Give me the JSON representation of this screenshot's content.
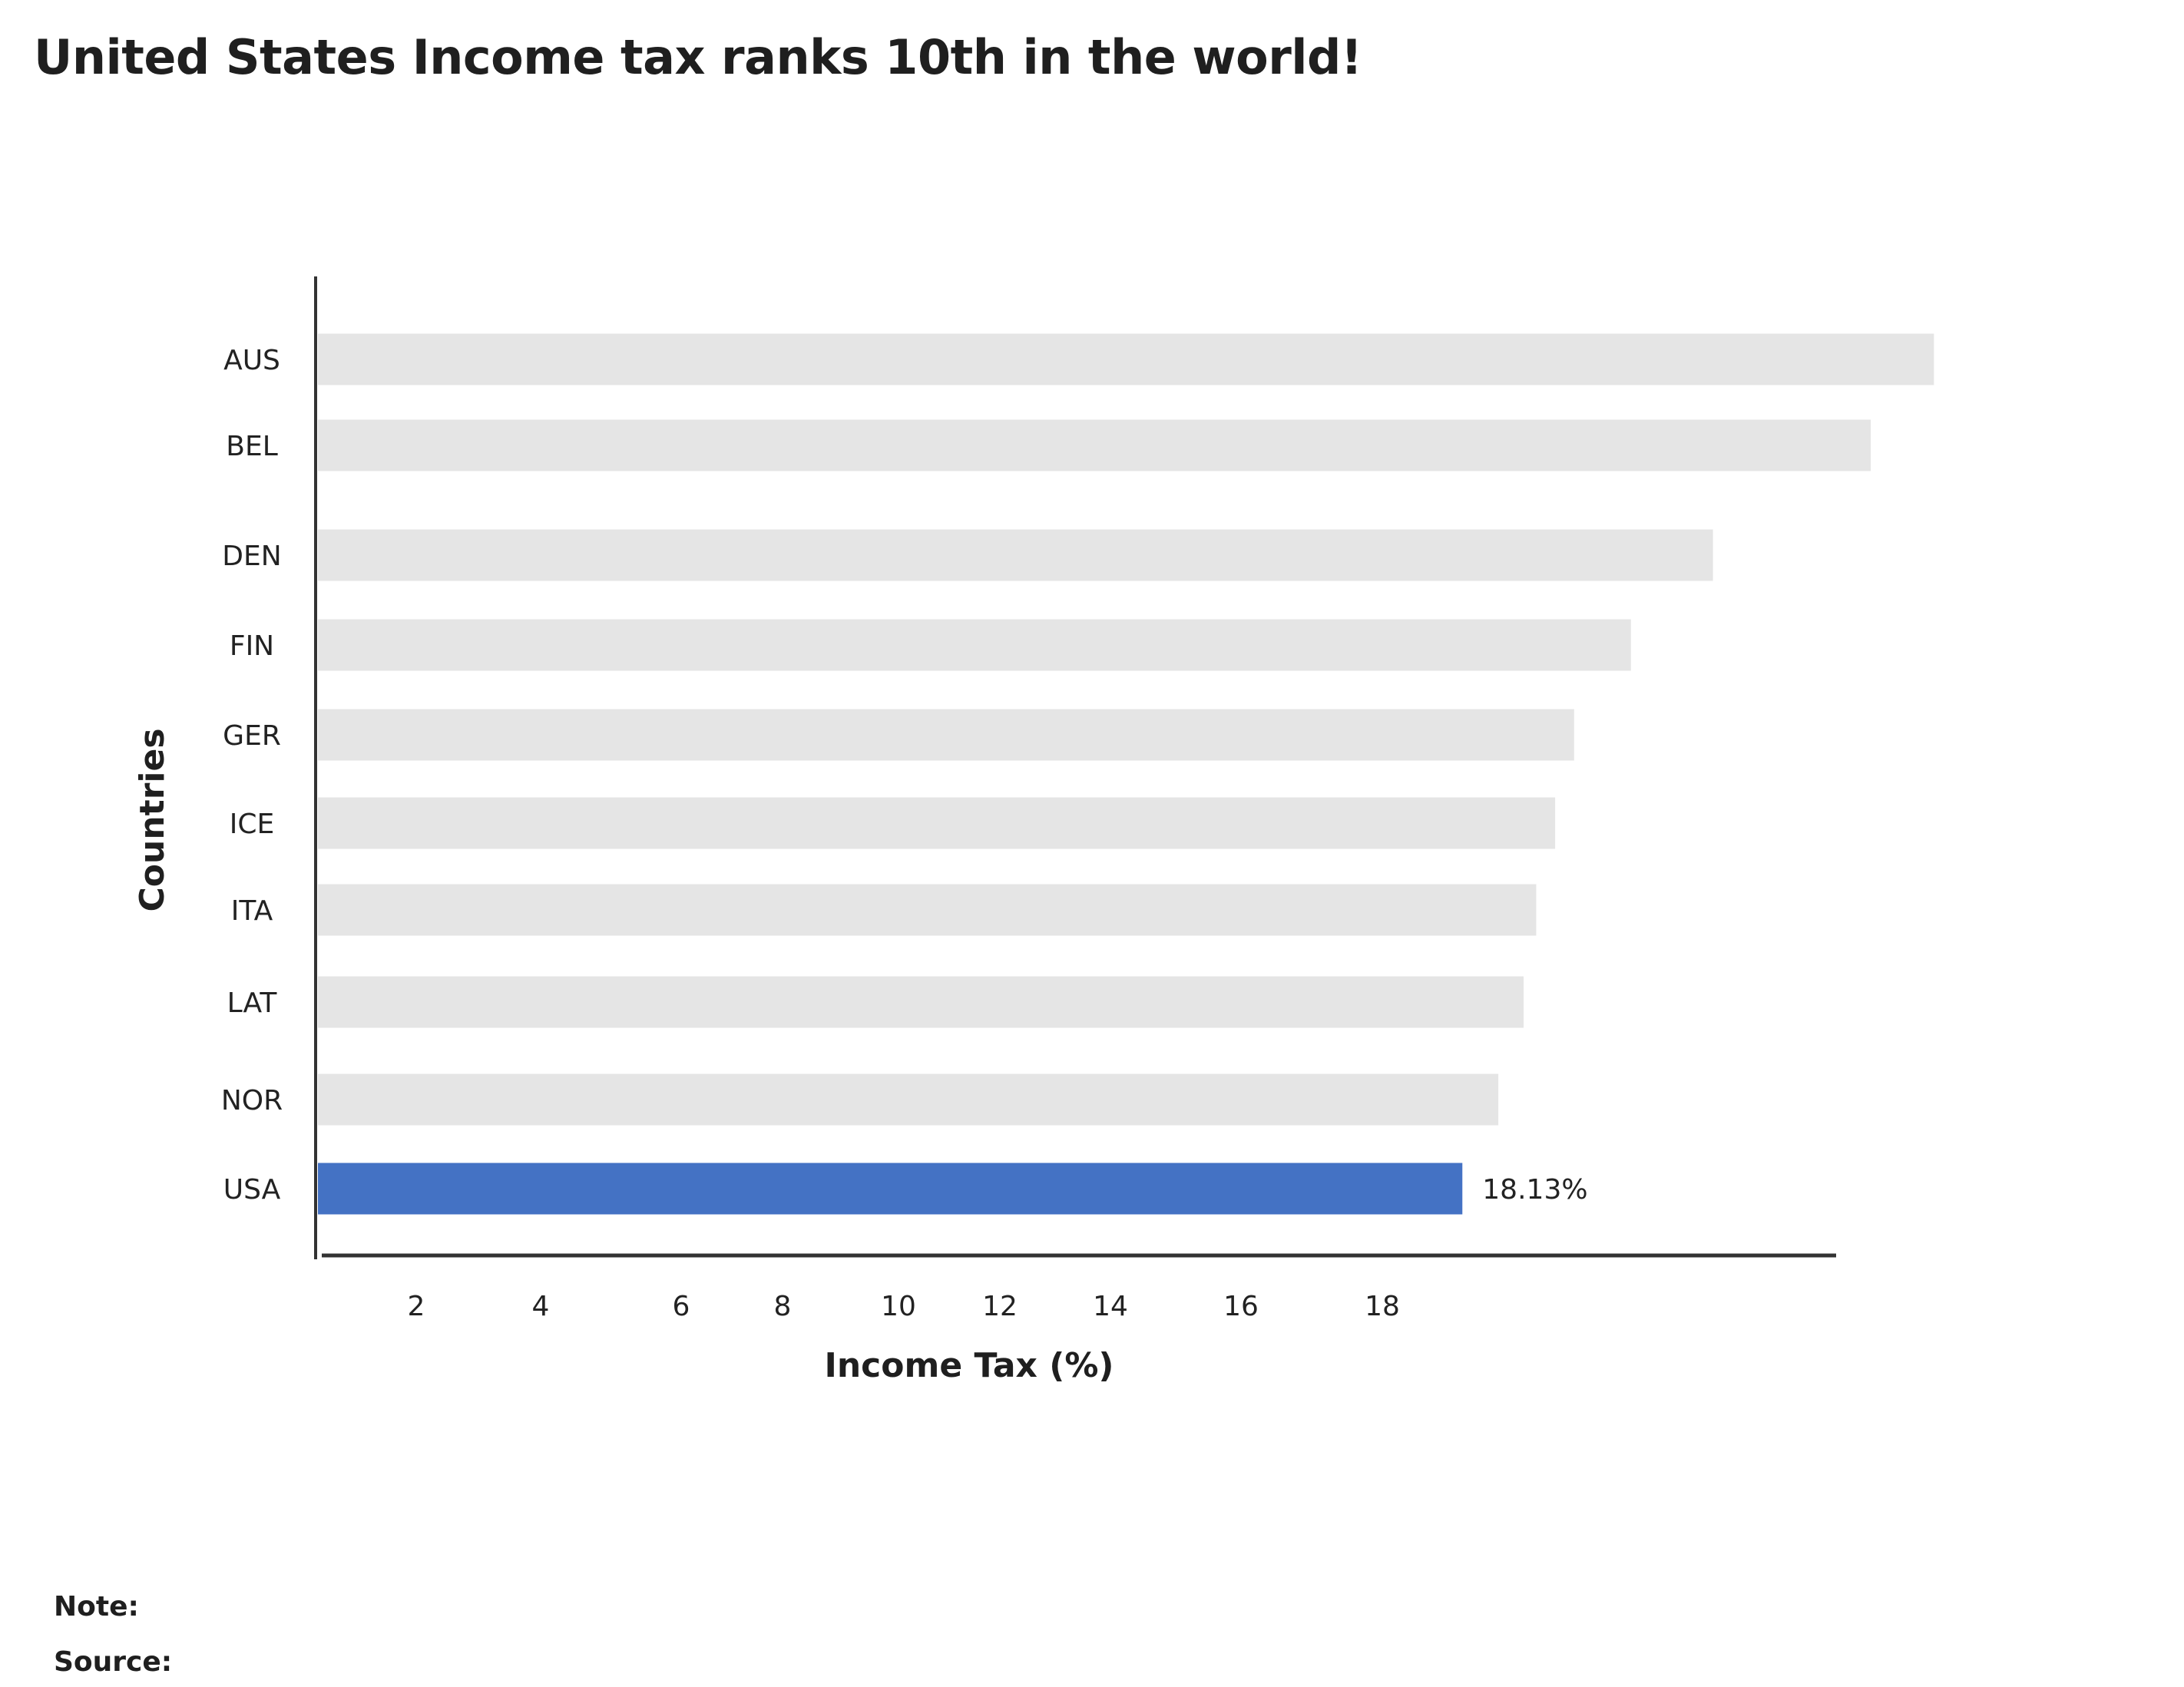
{
  "chart_data": {
    "type": "bar",
    "orientation": "horizontal",
    "title": "United States Income tax ranks 10th in the world!",
    "xlabel": "Income Tax (%)",
    "ylabel": "Countries",
    "categories": [
      "AUS",
      "BEL",
      "DEN",
      "FIN",
      "GER",
      "ICE",
      "ITA",
      "LAT",
      "NOR",
      "USA"
    ],
    "values": [
      25.6,
      24.6,
      22.1,
      20.8,
      19.9,
      19.6,
      19.3,
      19.1,
      18.7,
      18.13
    ],
    "highlight_category": "USA",
    "highlight_label": "18.13%",
    "x_ticks": [
      2,
      4,
      6,
      8,
      10,
      12,
      14,
      16,
      18
    ],
    "grid": false,
    "colors": {
      "bar": "#e5e5e5",
      "highlight": "#4472c4",
      "axis": "#333333"
    }
  },
  "footer": {
    "note_label": "Note:",
    "source_label": "Source:"
  }
}
